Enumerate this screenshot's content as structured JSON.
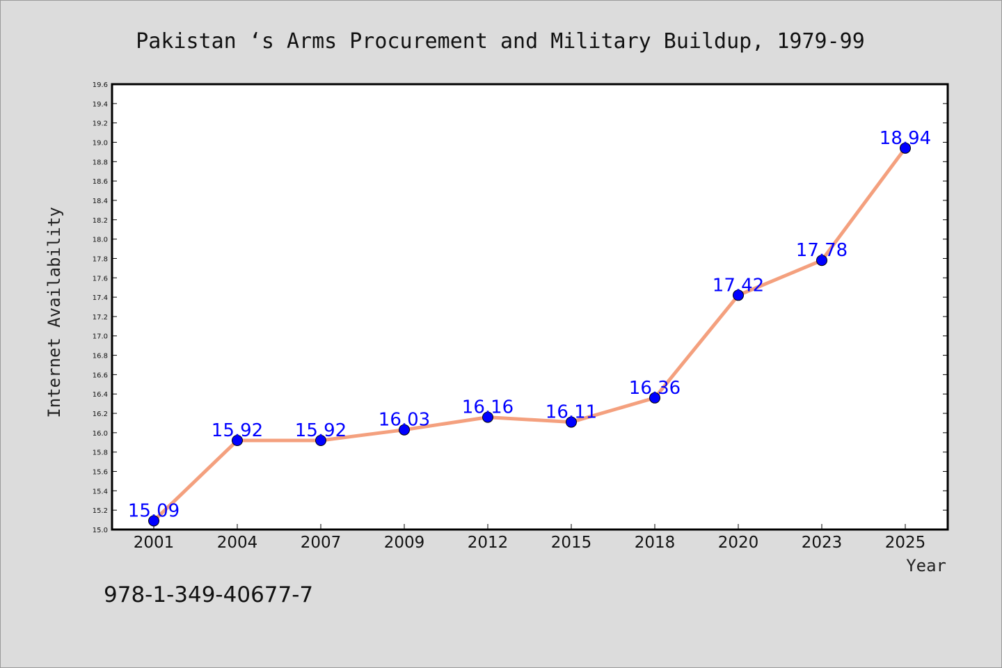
{
  "chart_data": {
    "type": "line",
    "title": "Pakistan ‘s Arms Procurement and Military Buildup, 1979-99",
    "xlabel": "Year",
    "ylabel": "Internet Availability",
    "categories": [
      "2001",
      "2004",
      "2007",
      "2009",
      "2012",
      "2015",
      "2018",
      "2020",
      "2023",
      "2025"
    ],
    "series": [
      {
        "values": [
          15.09,
          15.92,
          15.92,
          16.03,
          16.16,
          16.11,
          16.36,
          17.42,
          17.78,
          18.94
        ],
        "line_color": "#f4a07e",
        "marker_color": "#0000ff"
      }
    ],
    "data_labels": [
      "15.09",
      "15.92",
      "15.92",
      "16.03",
      "16.16",
      "16.11",
      "16.36",
      "17.42",
      "17.78",
      "18.94"
    ],
    "data_label_color": "#0000ff",
    "ylim": [
      15.0,
      19.6
    ],
    "yticks": [
      "15.0",
      "15.2",
      "15.4",
      "15.6",
      "15.8",
      "16.0",
      "16.2",
      "16.4",
      "16.6",
      "16.8",
      "17.0",
      "17.2",
      "17.4",
      "17.6",
      "17.8",
      "18.0",
      "18.2",
      "18.4",
      "18.6",
      "18.8",
      "19.0",
      "19.2",
      "19.4",
      "19.6"
    ],
    "grid": false,
    "legend": "none"
  },
  "footer": {
    "isbn": "978-1-349-40677-7"
  }
}
